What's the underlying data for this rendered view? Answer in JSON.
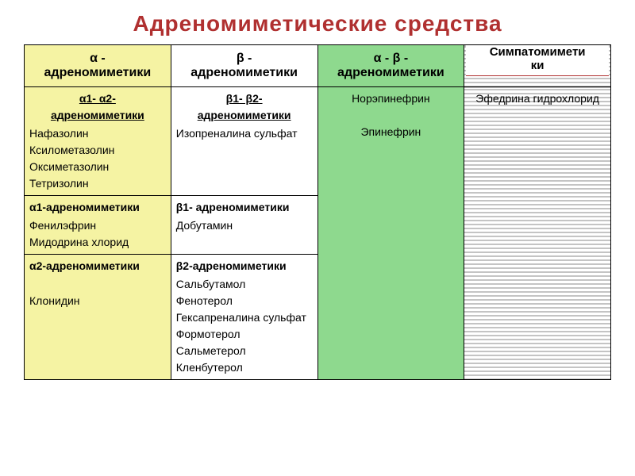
{
  "title": "Адреномиметические  средства",
  "title_color": "#b03030",
  "columns": {
    "alpha": {
      "label_line1": "α -",
      "label_line2": "адреномиметики",
      "bg": "#f5f3a3"
    },
    "beta": {
      "label_line1": "β -",
      "label_line2": "адреномиметики",
      "bg": "#ffffff"
    },
    "ab": {
      "label_line1": "α - β -",
      "label_line2": "адреномиметики",
      "bg": "#8ed98e"
    },
    "symp": {
      "label_line1": "Симпатомимети",
      "label_line2": "ки"
    }
  },
  "row1": {
    "alpha_head": "α1- α2-\nадреномиметики",
    "alpha_drugs": "Нафазолин\nКсилометазолин\nОксиметазолин\nТетризолин",
    "beta_head": "β1- β2-\nадреномиметики",
    "beta_drugs": "Изопреналина сульфат",
    "ab_drugs": "Норэпинефрин\n\nЭпинефрин",
    "symp_drugs": "Эфедрина гидрохлорид"
  },
  "row2": {
    "alpha_head": "α1-адреномиметики",
    "alpha_drugs": "Фенилэфрин\nМидодрина хлорид",
    "beta_head": "β1- адреномиметики",
    "beta_drugs": "Добутамин"
  },
  "row3": {
    "alpha_head": "α2-адреномиметики",
    "alpha_drugs": "\nКлонидин",
    "beta_head": "β2-адреномиметики",
    "beta_drugs": "Сальбутамол\nФенотерол\nГексапреналина сульфат\nФормотерол\nСальметерол\nКленбутерол"
  }
}
